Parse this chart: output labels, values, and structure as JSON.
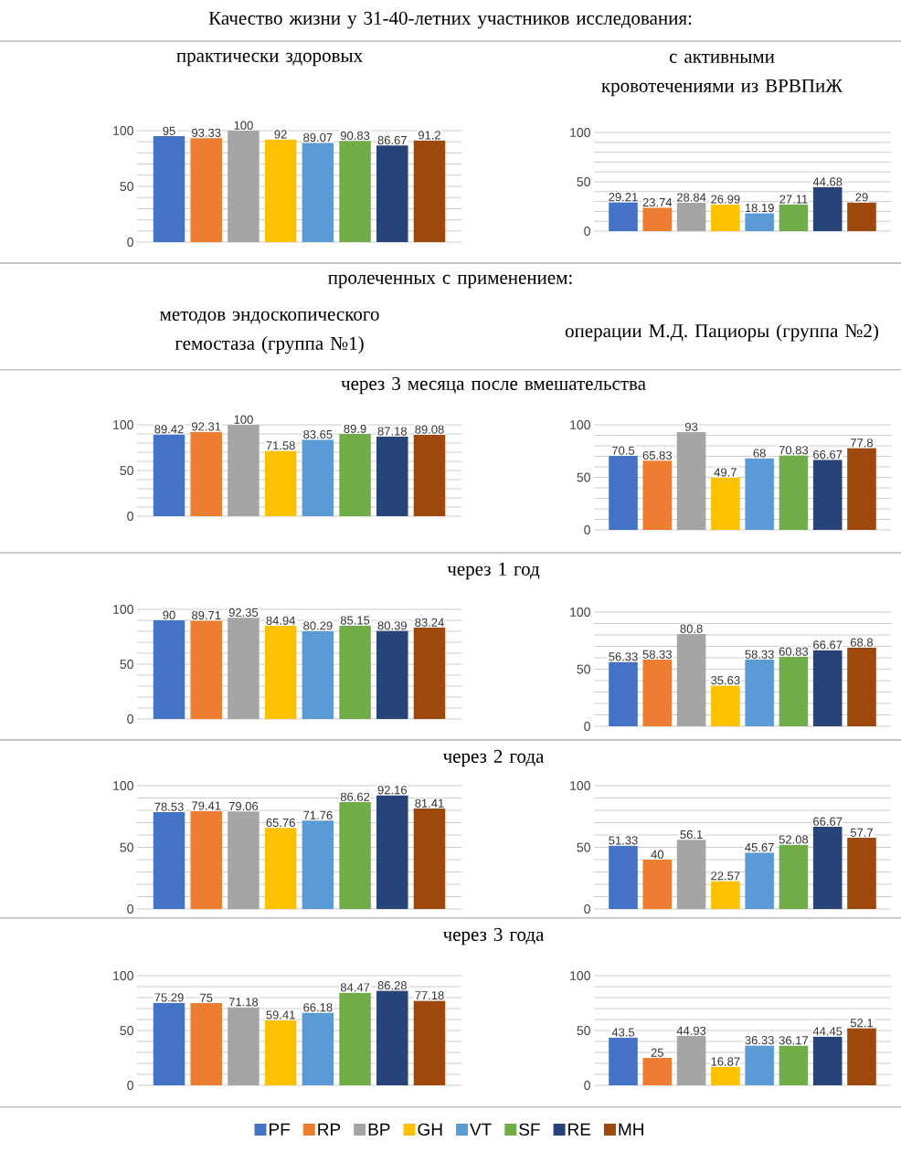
{
  "chart_data": [
    {
      "type": "other",
      "title": "Качество жизни у 31-40-летних участников исследования:"
    },
    {
      "type": "bar",
      "title": "практически здоровых",
      "categories": [
        null
      ],
      "ylim": [
        0,
        100
      ],
      "yticks": [
        0,
        {
          "value": 10,
          "label": null
        },
        {
          "value": 20,
          "label": null
        },
        {
          "value": 30,
          "label": null
        },
        {
          "value": 40,
          "label": null
        },
        50,
        {
          "value": 60,
          "label": null
        },
        {
          "value": 70,
          "label": null
        },
        {
          "value": 80,
          "label": null
        },
        {
          "value": 90,
          "label": null
        },
        100
      ],
      "grid": "y",
      "data_labels": true,
      "tick_labels": "y",
      "series": [
        {
          "color": "#4472c4",
          "values": [
            95
          ]
        },
        {
          "color": "#ed7d31",
          "values": [
            93.33
          ]
        },
        {
          "color": "#a5a5a5",
          "values": [
            100
          ]
        },
        {
          "color": "#ffc000",
          "values": [
            92
          ]
        },
        {
          "color": "#5b9bd5",
          "values": [
            89.07
          ]
        },
        {
          "color": "#70ad47",
          "values": [
            90.83
          ]
        },
        {
          "color": "#264478",
          "values": [
            86.67
          ]
        },
        {
          "color": "#9e480e",
          "values": [
            91.2
          ]
        }
      ]
    },
    {
      "type": "bar",
      "title": "с активными кровотечениями из ВРВПиЖ",
      "categories": [
        null
      ],
      "ylim": [
        0,
        100
      ],
      "yticks": [
        0,
        {
          "value": 10,
          "label": null
        },
        {
          "value": 20,
          "label": null
        },
        {
          "value": 30,
          "label": null
        },
        {
          "value": 40,
          "label": null
        },
        50,
        {
          "value": 60,
          "label": null
        },
        {
          "value": 70,
          "label": null
        },
        {
          "value": 80,
          "label": null
        },
        {
          "value": 90,
          "label": null
        },
        100
      ],
      "grid": "y",
      "data_labels": true,
      "tick_labels": "y",
      "series": [
        {
          "color": "#4472c4",
          "values": [
            29.21
          ]
        },
        {
          "color": "#ed7d31",
          "values": [
            23.74
          ]
        },
        {
          "color": "#a5a5a5",
          "values": [
            28.84
          ]
        },
        {
          "color": "#ffc000",
          "values": [
            26.99
          ]
        },
        {
          "color": "#5b9bd5",
          "values": [
            18.19
          ]
        },
        {
          "color": "#70ad47",
          "values": [
            27.11
          ]
        },
        {
          "color": "#264478",
          "values": [
            44.68
          ]
        },
        {
          "color": "#9e480e",
          "values": [
            29
          ]
        }
      ]
    },
    {
      "type": "other",
      "title": "пролеченных с применением:",
      "annotations": [
        "методов эндоскопического гемостаза (группа №1)",
        "операции М.Д. Пациоры (группа №2)"
      ]
    },
    {
      "type": "other",
      "title": "через 3 месяца после вмешательства"
    },
    {
      "type": "bar",
      "categories": [
        null
      ],
      "ylim": [
        0,
        100
      ],
      "yticks": [
        0,
        {
          "value": 10,
          "label": null
        },
        {
          "value": 20,
          "label": null
        },
        {
          "value": 30,
          "label": null
        },
        {
          "value": 40,
          "label": null
        },
        50,
        {
          "value": 60,
          "label": null
        },
        {
          "value": 70,
          "label": null
        },
        {
          "value": 80,
          "label": null
        },
        {
          "value": 90,
          "label": null
        },
        100
      ],
      "grid": "y",
      "data_labels": true,
      "tick_labels": "y",
      "series": [
        {
          "color": "#4472c4",
          "values": [
            89.42
          ]
        },
        {
          "color": "#ed7d31",
          "values": [
            92.31
          ]
        },
        {
          "color": "#a5a5a5",
          "values": [
            100
          ]
        },
        {
          "color": "#ffc000",
          "values": [
            71.58
          ]
        },
        {
          "color": "#5b9bd5",
          "values": [
            83.65
          ]
        },
        {
          "color": "#70ad47",
          "values": [
            89.9
          ]
        },
        {
          "color": "#264478",
          "values": [
            87.18
          ]
        },
        {
          "color": "#9e480e",
          "values": [
            89.08
          ]
        }
      ]
    },
    {
      "type": "bar",
      "categories": [
        null
      ],
      "ylim": [
        0,
        100
      ],
      "yticks": [
        0,
        {
          "value": 10,
          "label": null
        },
        {
          "value": 20,
          "label": null
        },
        {
          "value": 30,
          "label": null
        },
        {
          "value": 40,
          "label": null
        },
        50,
        {
          "value": 60,
          "label": null
        },
        {
          "value": 70,
          "label": null
        },
        {
          "value": 80,
          "label": null
        },
        {
          "value": 90,
          "label": null
        },
        100
      ],
      "grid": "y",
      "data_labels": true,
      "tick_labels": "y",
      "series": [
        {
          "color": "#4472c4",
          "values": [
            70.5
          ]
        },
        {
          "color": "#ed7d31",
          "values": [
            65.83
          ]
        },
        {
          "color": "#a5a5a5",
          "values": [
            93
          ]
        },
        {
          "color": "#ffc000",
          "values": [
            49.7
          ]
        },
        {
          "color": "#5b9bd5",
          "values": [
            68
          ]
        },
        {
          "color": "#70ad47",
          "values": [
            70.83
          ]
        },
        {
          "color": "#264478",
          "values": [
            66.67
          ]
        },
        {
          "color": "#9e480e",
          "values": [
            77.8
          ]
        }
      ]
    },
    {
      "type": "other",
      "title": "через 1 год"
    },
    {
      "type": "bar",
      "categories": [
        null
      ],
      "ylim": [
        0,
        100
      ],
      "yticks": [
        0,
        {
          "value": 10,
          "label": null
        },
        {
          "value": 20,
          "label": null
        },
        {
          "value": 30,
          "label": null
        },
        {
          "value": 40,
          "label": null
        },
        50,
        {
          "value": 60,
          "label": null
        },
        {
          "value": 70,
          "label": null
        },
        {
          "value": 80,
          "label": null
        },
        {
          "value": 90,
          "label": null
        },
        100
      ],
      "grid": "y",
      "data_labels": true,
      "tick_labels": "y",
      "series": [
        {
          "color": "#4472c4",
          "values": [
            90
          ]
        },
        {
          "color": "#ed7d31",
          "values": [
            89.71
          ]
        },
        {
          "color": "#a5a5a5",
          "values": [
            92.35
          ]
        },
        {
          "color": "#ffc000",
          "values": [
            84.94
          ]
        },
        {
          "color": "#5b9bd5",
          "values": [
            80.29
          ]
        },
        {
          "color": "#70ad47",
          "values": [
            85.15
          ]
        },
        {
          "color": "#264478",
          "values": [
            80.39
          ]
        },
        {
          "color": "#9e480e",
          "values": [
            83.24
          ]
        }
      ]
    },
    {
      "type": "bar",
      "categories": [
        null
      ],
      "ylim": [
        0,
        100
      ],
      "yticks": [
        0,
        {
          "value": 10,
          "label": null
        },
        {
          "value": 20,
          "label": null
        },
        {
          "value": 30,
          "label": null
        },
        {
          "value": 40,
          "label": null
        },
        50,
        {
          "value": 60,
          "label": null
        },
        {
          "value": 70,
          "label": null
        },
        {
          "value": 80,
          "label": null
        },
        {
          "value": 90,
          "label": null
        },
        100
      ],
      "grid": "y",
      "data_labels": true,
      "tick_labels": "y",
      "series": [
        {
          "color": "#4472c4",
          "values": [
            56.33
          ]
        },
        {
          "color": "#ed7d31",
          "values": [
            58.33
          ]
        },
        {
          "color": "#a5a5a5",
          "values": [
            80.8
          ]
        },
        {
          "color": "#ffc000",
          "values": [
            35.63
          ]
        },
        {
          "color": "#5b9bd5",
          "values": [
            58.33
          ]
        },
        {
          "color": "#70ad47",
          "values": [
            60.83
          ]
        },
        {
          "color": "#264478",
          "values": [
            66.67
          ]
        },
        {
          "color": "#9e480e",
          "values": [
            68.8
          ]
        }
      ]
    },
    {
      "type": "other",
      "title": "через 2 года"
    },
    {
      "type": "bar",
      "categories": [
        null
      ],
      "ylim": [
        0,
        100
      ],
      "yticks": [
        0,
        {
          "value": 10,
          "label": null
        },
        {
          "value": 20,
          "label": null
        },
        {
          "value": 30,
          "label": null
        },
        {
          "value": 40,
          "label": null
        },
        50,
        {
          "value": 60,
          "label": null
        },
        {
          "value": 70,
          "label": null
        },
        {
          "value": 80,
          "label": null
        },
        {
          "value": 90,
          "label": null
        },
        100
      ],
      "grid": "y",
      "data_labels": true,
      "tick_labels": "y",
      "series": [
        {
          "color": "#4472c4",
          "values": [
            78.53
          ]
        },
        {
          "color": "#ed7d31",
          "values": [
            79.41
          ]
        },
        {
          "color": "#a5a5a5",
          "values": [
            79.06
          ]
        },
        {
          "color": "#ffc000",
          "values": [
            65.76
          ]
        },
        {
          "color": "#5b9bd5",
          "values": [
            71.76
          ]
        },
        {
          "color": "#70ad47",
          "values": [
            86.62
          ]
        },
        {
          "color": "#264478",
          "values": [
            92.16
          ]
        },
        {
          "color": "#9e480e",
          "values": [
            81.41
          ]
        }
      ]
    },
    {
      "type": "bar",
      "categories": [
        null
      ],
      "ylim": [
        0,
        100
      ],
      "yticks": [
        0,
        {
          "value": 10,
          "label": null
        },
        {
          "value": 20,
          "label": null
        },
        {
          "value": 30,
          "label": null
        },
        {
          "value": 40,
          "label": null
        },
        50,
        {
          "value": 60,
          "label": null
        },
        {
          "value": 70,
          "label": null
        },
        {
          "value": 80,
          "label": null
        },
        {
          "value": 90,
          "label": null
        },
        100
      ],
      "grid": "y",
      "data_labels": true,
      "tick_labels": "y",
      "series": [
        {
          "color": "#4472c4",
          "values": [
            51.33
          ]
        },
        {
          "color": "#ed7d31",
          "values": [
            40
          ]
        },
        {
          "color": "#a5a5a5",
          "values": [
            56.1
          ]
        },
        {
          "color": "#ffc000",
          "values": [
            22.57
          ]
        },
        {
          "color": "#5b9bd5",
          "values": [
            45.67
          ]
        },
        {
          "color": "#70ad47",
          "values": [
            52.08
          ]
        },
        {
          "color": "#264478",
          "values": [
            66.67
          ]
        },
        {
          "color": "#9e480e",
          "values": [
            57.7
          ]
        }
      ]
    },
    {
      "type": "other",
      "title": "через 3 года"
    },
    {
      "type": "bar",
      "categories": [
        null
      ],
      "ylim": [
        0,
        100
      ],
      "yticks": [
        0,
        {
          "value": 10,
          "label": null
        },
        {
          "value": 20,
          "label": null
        },
        {
          "value": 30,
          "label": null
        },
        {
          "value": 40,
          "label": null
        },
        50,
        {
          "value": 60,
          "label": null
        },
        {
          "value": 70,
          "label": null
        },
        {
          "value": 80,
          "label": null
        },
        {
          "value": 90,
          "label": null
        },
        100
      ],
      "grid": "y",
      "data_labels": true,
      "tick_labels": "y",
      "series": [
        {
          "color": "#4472c4",
          "values": [
            75.29
          ]
        },
        {
          "color": "#ed7d31",
          "values": [
            75
          ]
        },
        {
          "color": "#a5a5a5",
          "values": [
            71.18
          ]
        },
        {
          "color": "#ffc000",
          "values": [
            59.41
          ]
        },
        {
          "color": "#5b9bd5",
          "values": [
            66.18
          ]
        },
        {
          "color": "#70ad47",
          "values": [
            84.47
          ]
        },
        {
          "color": "#264478",
          "values": [
            86.28
          ]
        },
        {
          "color": "#9e480e",
          "values": [
            77.18
          ]
        }
      ]
    },
    {
      "type": "bar",
      "categories": [
        null
      ],
      "ylim": [
        0,
        100
      ],
      "yticks": [
        0,
        {
          "value": 10,
          "label": null
        },
        {
          "value": 20,
          "label": null
        },
        {
          "value": 30,
          "label": null
        },
        {
          "value": 40,
          "label": null
        },
        50,
        {
          "value": 60,
          "label": null
        },
        {
          "value": 70,
          "label": null
        },
        {
          "value": 80,
          "label": null
        },
        {
          "value": 90,
          "label": null
        },
        100
      ],
      "grid": "y",
      "data_labels": true,
      "tick_labels": "y",
      "legend": "bottom",
      "series": [
        {
          "name": "PF",
          "color": "#4472c4",
          "values": [
            43.5
          ]
        },
        {
          "name": "RP",
          "color": "#ed7d31",
          "values": [
            25
          ]
        },
        {
          "name": "BP",
          "color": "#a5a5a5",
          "values": [
            44.93
          ]
        },
        {
          "name": "GH",
          "color": "#ffc000",
          "values": [
            16.87
          ]
        },
        {
          "name": "VT",
          "color": "#5b9bd5",
          "values": [
            36.33
          ]
        },
        {
          "name": "SF",
          "color": "#70ad47",
          "values": [
            36.17
          ]
        },
        {
          "name": "RE",
          "color": "#264478",
          "values": [
            44.45
          ]
        },
        {
          "name": "MH",
          "color": "#9e480e",
          "values": [
            52.1
          ]
        }
      ]
    }
  ]
}
